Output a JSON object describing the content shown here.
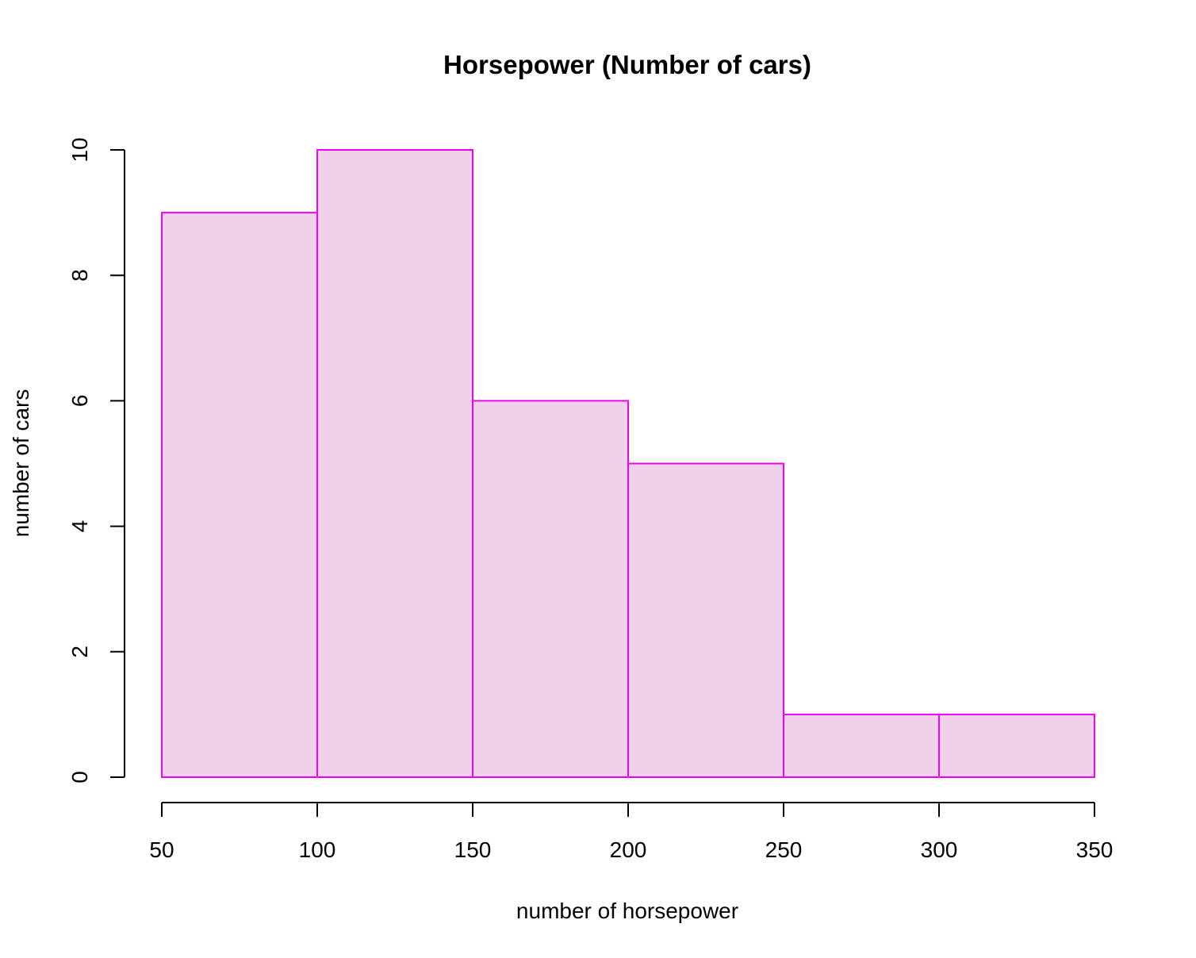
{
  "chart_data": {
    "type": "bar",
    "title": "Horsepower (Number of cars)",
    "xlabel": "number of horsepower",
    "ylabel": "number of cars",
    "bins": [
      {
        "start": 50,
        "end": 100,
        "count": 9
      },
      {
        "start": 100,
        "end": 150,
        "count": 10
      },
      {
        "start": 150,
        "end": 200,
        "count": 6
      },
      {
        "start": 200,
        "end": 250,
        "count": 5
      },
      {
        "start": 250,
        "end": 300,
        "count": 1
      },
      {
        "start": 300,
        "end": 350,
        "count": 1
      }
    ],
    "xlim": [
      50,
      350
    ],
    "ylim": [
      0,
      10
    ],
    "x_ticks": [
      "50",
      "100",
      "150",
      "200",
      "250",
      "300",
      "350"
    ],
    "y_ticks": [
      "0",
      "2",
      "4",
      "6",
      "8",
      "10"
    ],
    "grid": false,
    "colors": {
      "bar_fill": "#efd1ec",
      "bar_border": "#ee00ee",
      "axis": "#000000"
    }
  }
}
